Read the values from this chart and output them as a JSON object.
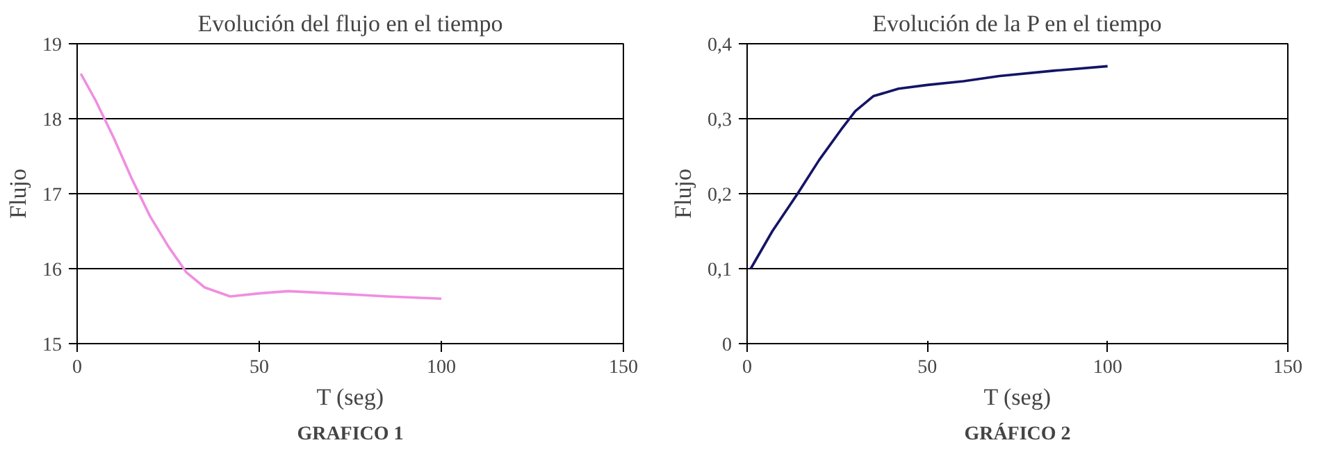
{
  "chart_data": [
    {
      "type": "line",
      "title": "Evolución del flujo en el tiempo",
      "xlabel": "T (seg)",
      "ylabel": "Flujo",
      "annotations": [
        "GRAFICO 1"
      ],
      "x": [
        1,
        5,
        10,
        15,
        20,
        25,
        30,
        35,
        42,
        50,
        58,
        70,
        85,
        100
      ],
      "series": [
        {
          "color": "#f08ee0",
          "values": [
            18.6,
            18.25,
            17.75,
            17.2,
            16.7,
            16.3,
            15.95,
            15.75,
            15.63,
            15.67,
            15.7,
            15.67,
            15.63,
            15.6
          ]
        }
      ],
      "xlim": [
        0,
        150
      ],
      "xticks": [
        0,
        50,
        100,
        150
      ],
      "ylim": [
        15,
        19
      ],
      "yticks": [
        15,
        16,
        17,
        18,
        19
      ],
      "grid": "y",
      "marker": "none"
    },
    {
      "type": "line",
      "title": "Evolución de la P en el tiempo",
      "xlabel": "T (seg)",
      "ylabel": "Flujo",
      "annotations": [
        "GRÁFICO 2"
      ],
      "x": [
        1,
        7,
        14,
        20,
        26,
        30,
        35,
        42,
        50,
        60,
        70,
        85,
        100
      ],
      "series": [
        {
          "color": "#141466",
          "values": [
            0.1,
            0.15,
            0.2,
            0.245,
            0.285,
            0.31,
            0.33,
            0.34,
            0.345,
            0.35,
            0.357,
            0.364,
            0.37
          ]
        }
      ],
      "xlim": [
        0,
        150
      ],
      "xticks": [
        0,
        50,
        100,
        150
      ],
      "ylim": [
        0,
        0.4
      ],
      "yticks": [
        0,
        {
          "value": 0.1,
          "label": "0,1"
        },
        {
          "value": 0.2,
          "label": "0,2"
        },
        {
          "value": 0.3,
          "label": "0,3"
        },
        {
          "value": 0.4,
          "label": "0,4"
        }
      ],
      "grid": "y",
      "marker": "none"
    }
  ]
}
